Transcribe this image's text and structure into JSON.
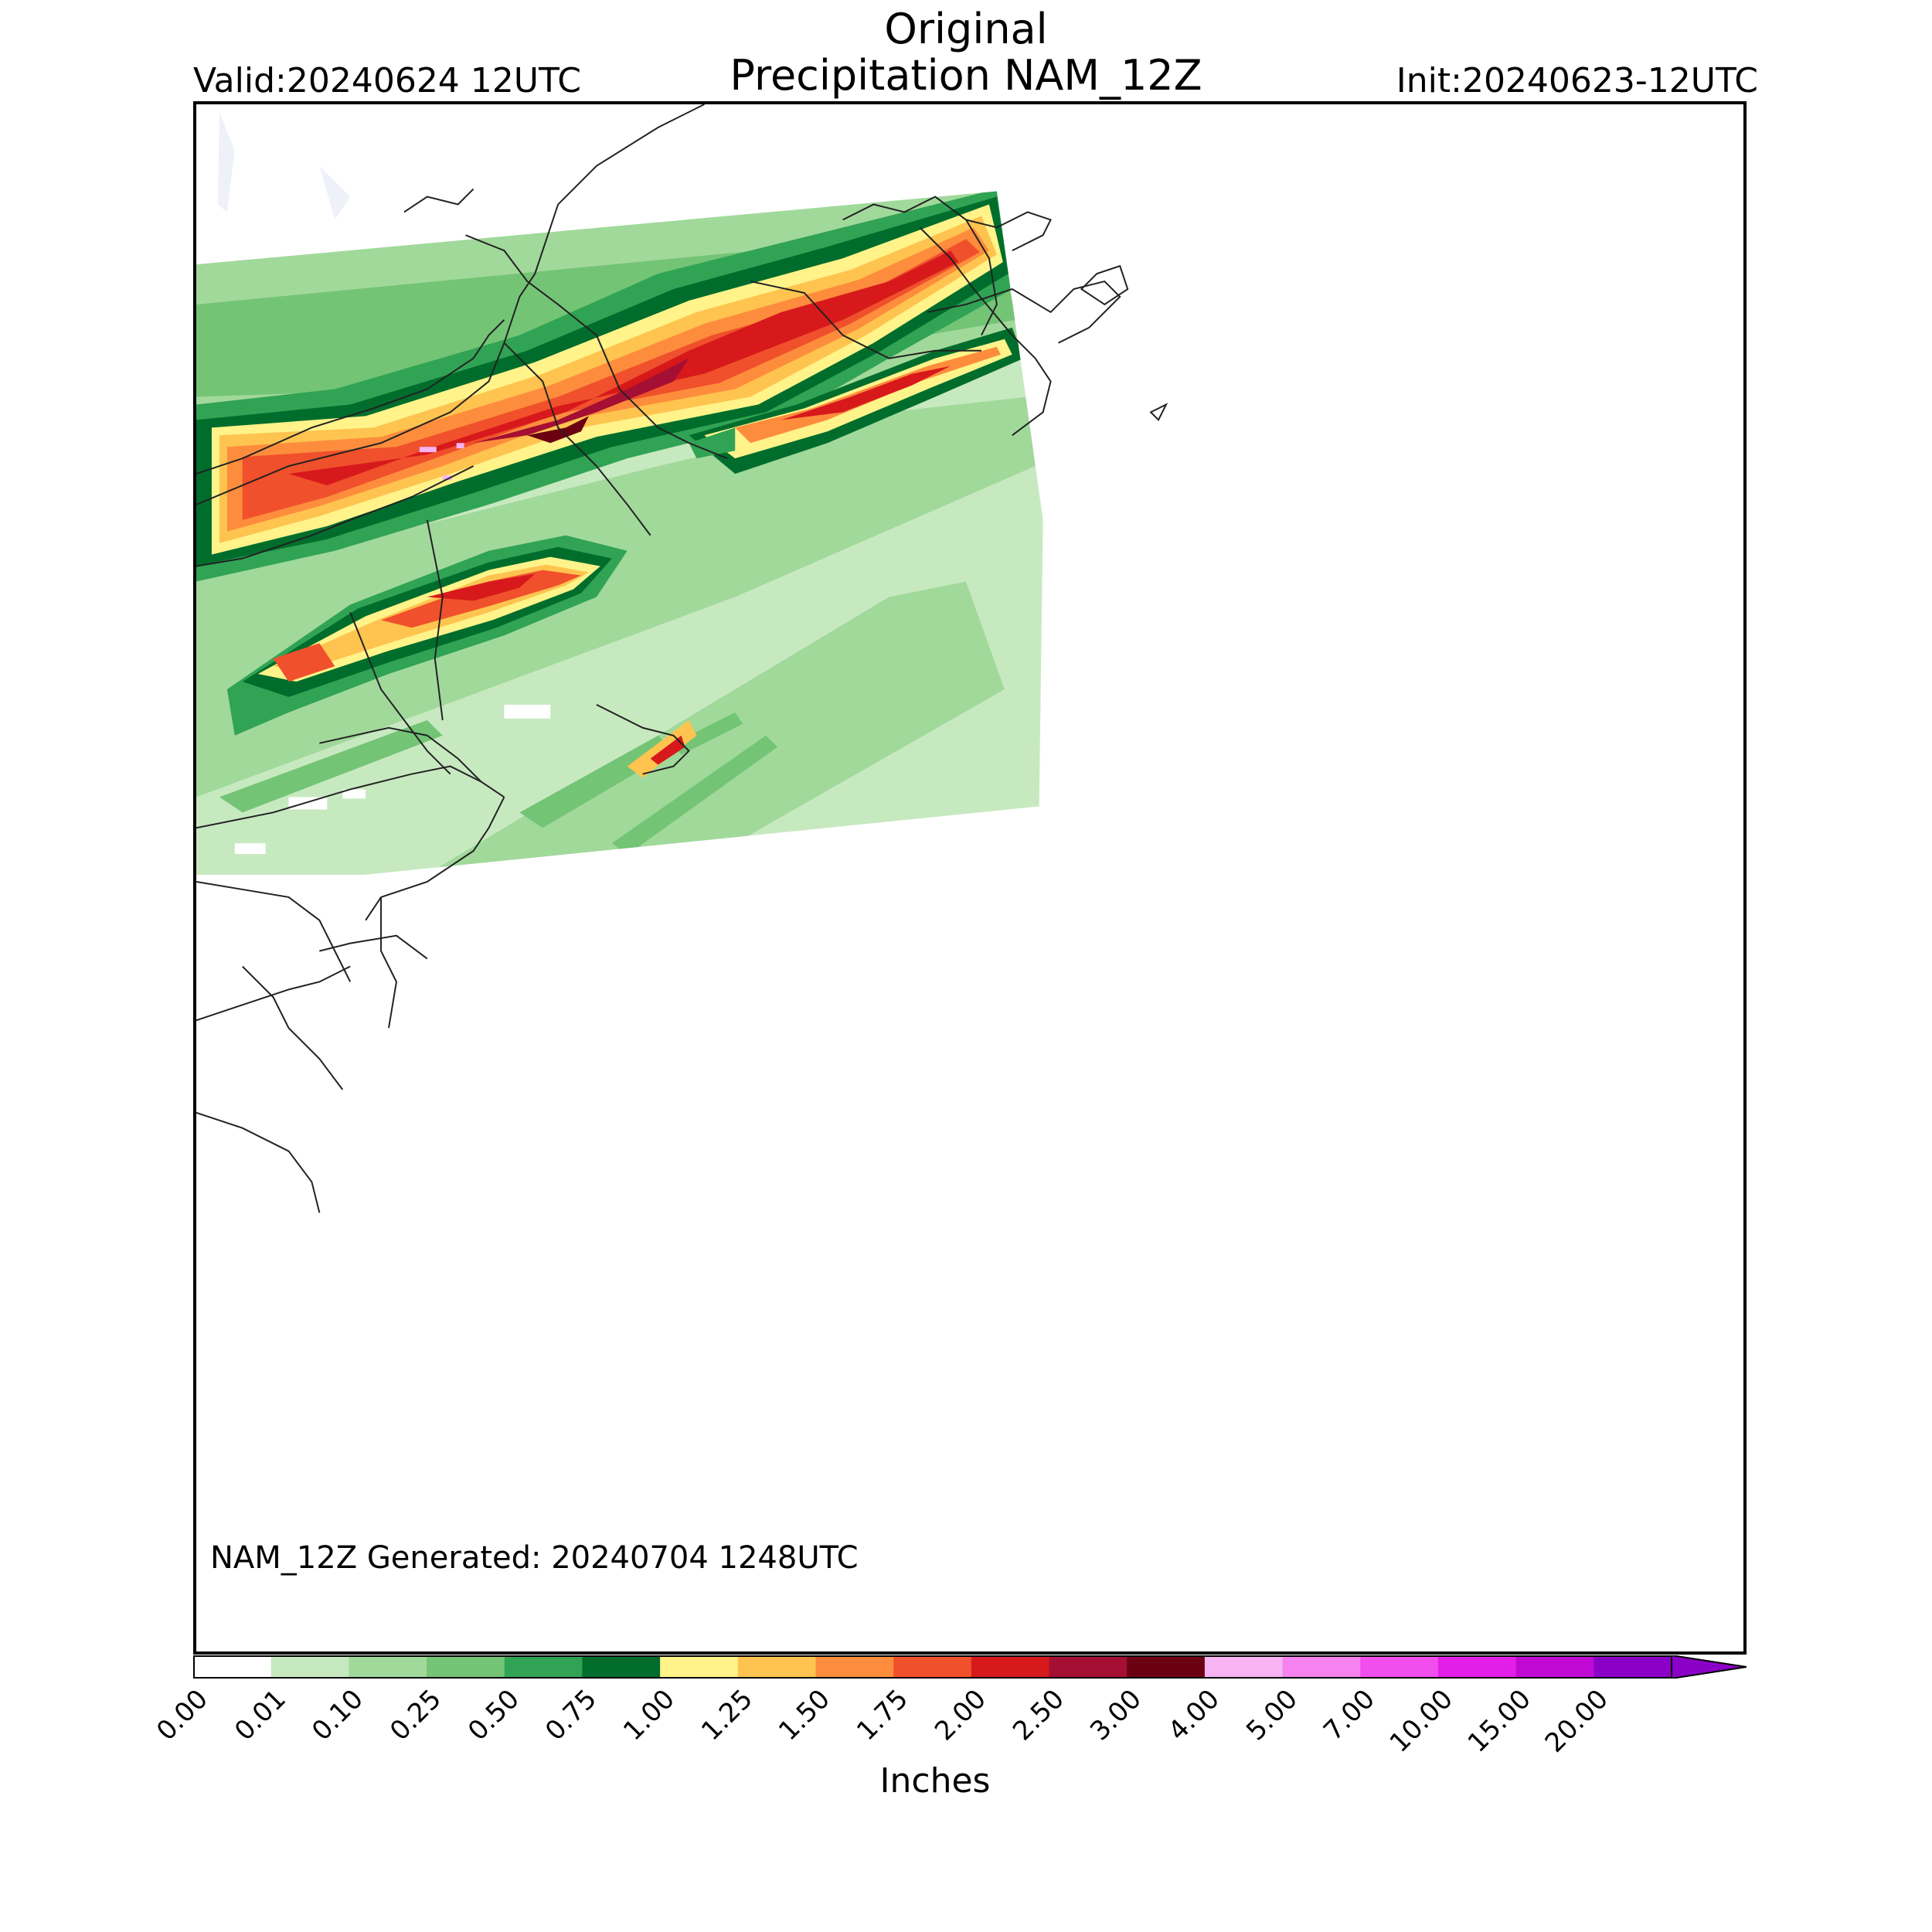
{
  "title": {
    "main": "Original",
    "sub": "Precipitation NAM_12Z"
  },
  "valid": "Valid:20240624 12UTC",
  "init": "Init:20240623-12UTC",
  "generated": "NAM_12Z Generated: 20240704 1248UTC",
  "colorbar": {
    "label": "Inches",
    "ticks": [
      "0.00",
      "0.01",
      "0.10",
      "0.25",
      "0.50",
      "0.75",
      "1.00",
      "1.25",
      "1.50",
      "1.75",
      "2.00",
      "2.50",
      "3.00",
      "4.00",
      "5.00",
      "7.00",
      "10.00",
      "15.00",
      "20.00"
    ],
    "colors": [
      "#ffffff",
      "#c7e9c0",
      "#a1d99b",
      "#74c476",
      "#31a354",
      "#006d2c",
      "#fff38a",
      "#fec44f",
      "#fd8d3c",
      "#f0502b",
      "#d7191c",
      "#a50f33",
      "#6b0012",
      "#f7b3f2",
      "#f582ef",
      "#f24ded",
      "#e31ee8",
      "#c00ad4",
      "#8b00c7"
    ],
    "extend": "max"
  },
  "map": {
    "region": "Northeastern United States",
    "land_outline_color": "#222222",
    "water_color": "#f2f5fa"
  }
}
